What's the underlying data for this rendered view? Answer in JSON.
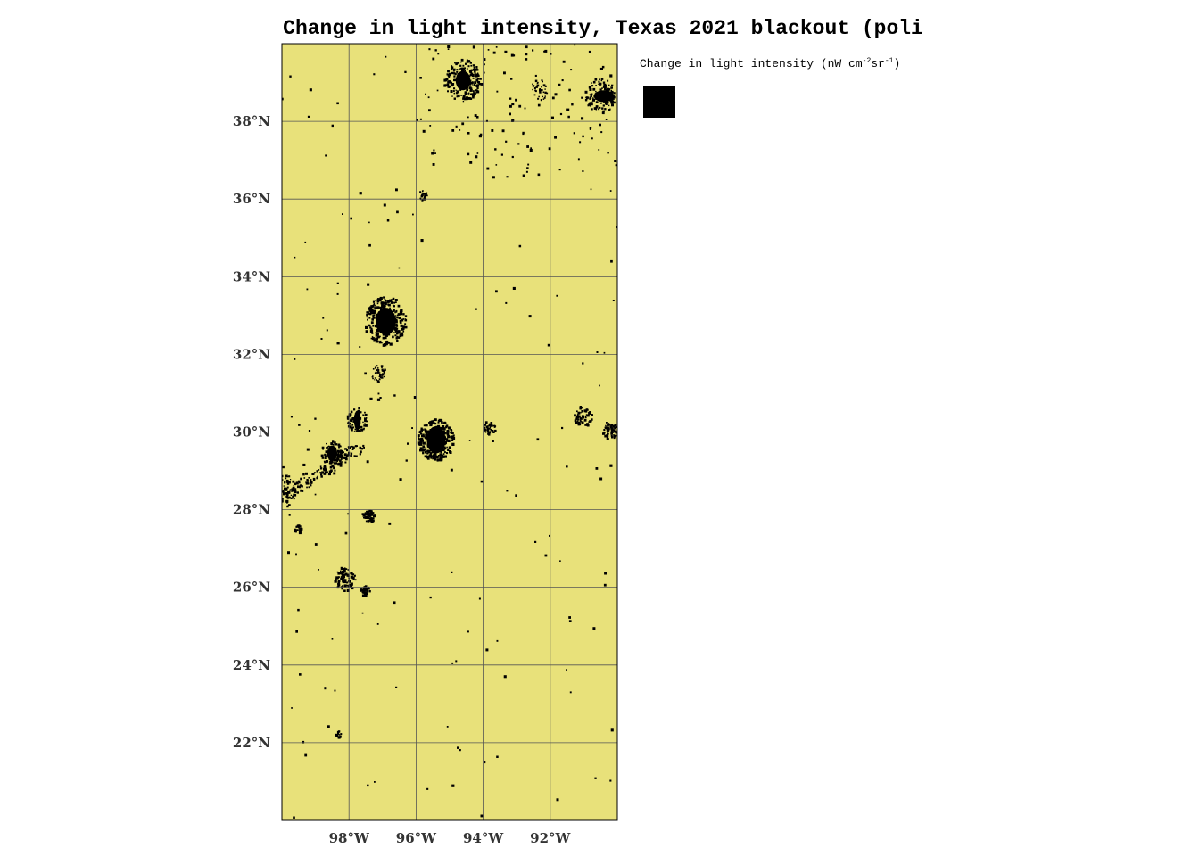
{
  "title": "Change in light intensity, Texas 2021 blackout (poli",
  "legend": {
    "label_prefix": "Change in light intensity (nW cm",
    "label_exp1": "-2",
    "label_mid": "sr",
    "label_exp2": "-1",
    "label_suffix": ")",
    "swatch_color": "#000000"
  },
  "colors": {
    "land": "#e8e17a",
    "features": "#000000",
    "grid": "#555555"
  },
  "map_data": {
    "extent": {
      "lon_min": -100,
      "lon_max": -90,
      "lat_min": 20,
      "lat_max": 40
    },
    "lon_ticks": [
      {
        "value": -98,
        "label": "98°W"
      },
      {
        "value": -96,
        "label": "96°W"
      },
      {
        "value": -94,
        "label": "94°W"
      },
      {
        "value": -92,
        "label": "92°W"
      }
    ],
    "lat_ticks": [
      {
        "value": 38,
        "label": "38°N"
      },
      {
        "value": 36,
        "label": "36°N"
      },
      {
        "value": 34,
        "label": "34°N"
      },
      {
        "value": 32,
        "label": "32°N"
      },
      {
        "value": 30,
        "label": "30°N"
      },
      {
        "value": 28,
        "label": "28°N"
      },
      {
        "value": 26,
        "label": "26°N"
      },
      {
        "value": 24,
        "label": "24°N"
      },
      {
        "value": 22,
        "label": "22°N"
      }
    ]
  }
}
